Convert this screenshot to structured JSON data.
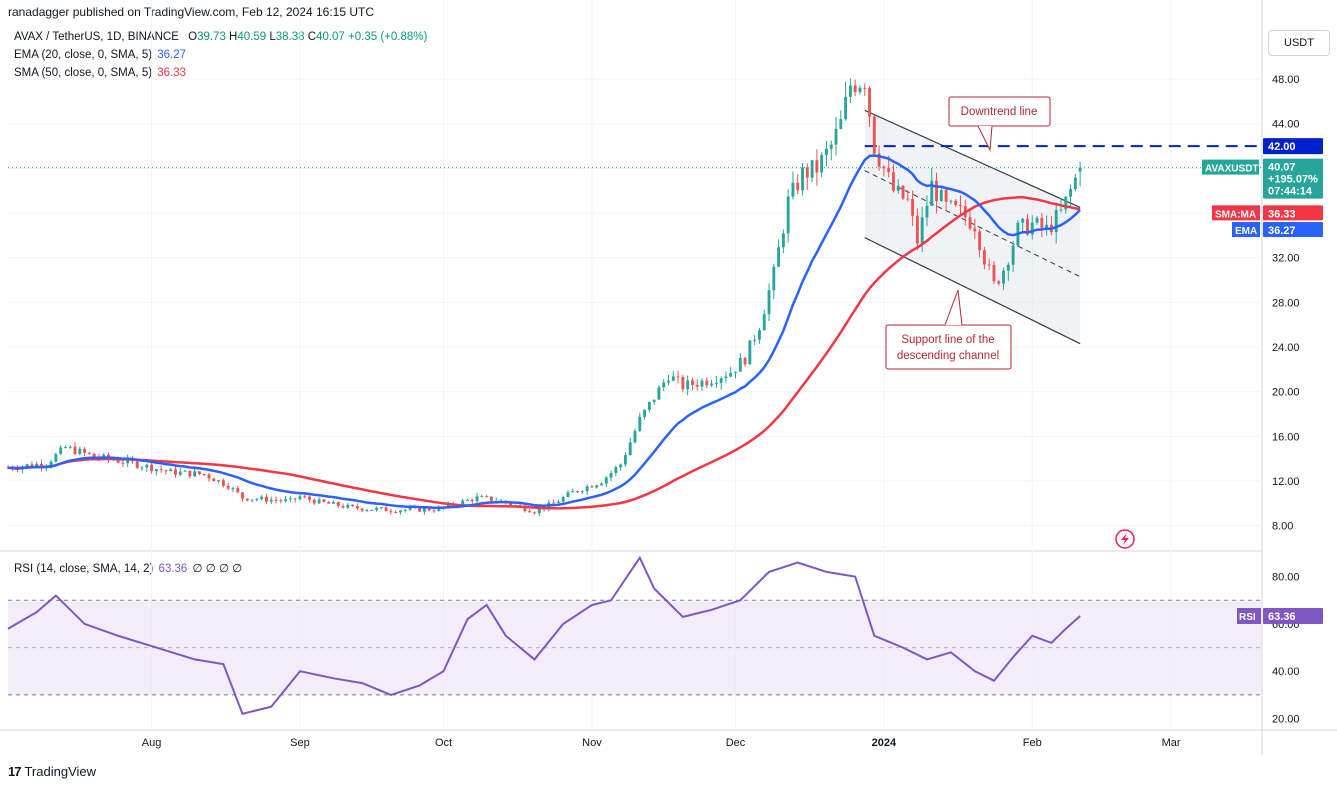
{
  "header": {
    "published": "ranadagger published on TradingView.com, Feb 12, 2024 16:15 UTC"
  },
  "legend": {
    "symbol": "AVAX / TetherUS, 1D, BINANCE",
    "o_label": "O",
    "o": "39.73",
    "h_label": "H",
    "h": "40.59",
    "l_label": "L",
    "l": "38.38",
    "c_label": "C",
    "c": "40.07",
    "change": "+0.35 (+0.88%)",
    "ema_label": "EMA (20, close, 0, SMA, 5)",
    "ema_value": "36.27",
    "sma_label": "SMA (50, close, 0, SMA, 5)",
    "sma_value": "36.33",
    "rsi_label": "RSI (14, close, SMA, 14, 2)",
    "rsi_value": "63.36",
    "rsi_extra": "∅ ∅ ∅ ∅"
  },
  "currency_button": "USDT",
  "footer": {
    "brand": "TradingView",
    "logo": "17"
  },
  "annotations": {
    "downtrend": "Downtrend line",
    "support_line1": "Support line of the",
    "support_line2": "descending channel"
  },
  "badges": {
    "symbol": "AVAXUSDT",
    "price": "40.07",
    "pct": "+195.07%",
    "countdown": "07:44:14",
    "level": "42.00",
    "sma": "SMA:MA",
    "sma_val": "36.33",
    "ema": "EMA",
    "ema_val": "36.27",
    "rsi": "RSI",
    "rsi_val": "63.36"
  },
  "colors": {
    "up": "#26a69a",
    "down": "#ef5350",
    "ema": "#2962ff",
    "sma": "#f23645",
    "rsi": "#7e57c2",
    "dashed_level": "#0022cc",
    "channel": "#363a45",
    "annotation": "#b22833"
  },
  "chart_data": [
    {
      "type": "candlestick",
      "title": "AVAX / TetherUS, 1D, BINANCE",
      "y_ticks": [
        "8.00",
        "12.00",
        "16.00",
        "20.00",
        "24.00",
        "28.00",
        "32.00",
        "36.00",
        "40.00",
        "44.00",
        "48.00"
      ],
      "y_tick_values": [
        8,
        12,
        16,
        20,
        24,
        28,
        32,
        36,
        40,
        44,
        48
      ],
      "x_ticks": [
        "Aug",
        "Sep",
        "Oct",
        "Nov",
        "Dec",
        "2024",
        "Feb",
        "Mar"
      ],
      "x_tick_dates": [
        "2023-08-01",
        "2023-09-01",
        "2023-10-01",
        "2023-11-01",
        "2023-12-01",
        "2024-01-01",
        "2024-02-01",
        "2024-03-01"
      ],
      "x_range": [
        "2023-07-02",
        "2024-03-20"
      ],
      "ylim": [
        6.0,
        51.5
      ],
      "close_anchors": [
        [
          "2023-07-02",
          13.2
        ],
        [
          "2023-07-10",
          13.6
        ],
        [
          "2023-07-14",
          15.0
        ],
        [
          "2023-07-20",
          14.2
        ],
        [
          "2023-07-28",
          13.6
        ],
        [
          "2023-08-05",
          12.8
        ],
        [
          "2023-08-12",
          12.6
        ],
        [
          "2023-08-17",
          11.6
        ],
        [
          "2023-08-20",
          10.5
        ],
        [
          "2023-08-30",
          10.2
        ],
        [
          "2023-09-01",
          10.6
        ],
        [
          "2023-09-05",
          10.1
        ],
        [
          "2023-09-12",
          9.6
        ],
        [
          "2023-09-20",
          9.4
        ],
        [
          "2023-09-30",
          9.5
        ],
        [
          "2023-10-08",
          10.5
        ],
        [
          "2023-10-12",
          10.3
        ],
        [
          "2023-10-20",
          9.3
        ],
        [
          "2023-10-24",
          10.0
        ],
        [
          "2023-10-28",
          11.0
        ],
        [
          "2023-11-03",
          12.0
        ],
        [
          "2023-11-07",
          13.5
        ],
        [
          "2023-11-11",
          17.5
        ],
        [
          "2023-11-14",
          19.5
        ],
        [
          "2023-11-17",
          21.5
        ],
        [
          "2023-11-20",
          20.5
        ],
        [
          "2023-11-25",
          21.0
        ],
        [
          "2023-11-30",
          21.8
        ],
        [
          "2023-12-03",
          23.0
        ],
        [
          "2023-12-06",
          26.0
        ],
        [
          "2023-12-09",
          30.5
        ],
        [
          "2023-12-12",
          37.0
        ],
        [
          "2023-12-15",
          39.5
        ],
        [
          "2023-12-18",
          40.0
        ],
        [
          "2023-12-21",
          42.0
        ],
        [
          "2023-12-23",
          44.0
        ],
        [
          "2023-12-25",
          47.5
        ],
        [
          "2023-12-28",
          48.0
        ],
        [
          "2023-12-30",
          42.0
        ],
        [
          "2024-01-03",
          38.0
        ],
        [
          "2024-01-06",
          37.0
        ],
        [
          "2024-01-08",
          33.5
        ],
        [
          "2024-01-11",
          38.5
        ],
        [
          "2024-01-14",
          36.5
        ],
        [
          "2024-01-17",
          36.0
        ],
        [
          "2024-01-20",
          35.0
        ],
        [
          "2024-01-22",
          32.0
        ],
        [
          "2024-01-24",
          29.5
        ],
        [
          "2024-01-26",
          31.0
        ],
        [
          "2024-01-29",
          34.5
        ],
        [
          "2024-02-01",
          35.0
        ],
        [
          "2024-02-04",
          34.5
        ],
        [
          "2024-02-07",
          36.0
        ],
        [
          "2024-02-09",
          38.0
        ],
        [
          "2024-02-11",
          40.07
        ]
      ],
      "ema20": {
        "name": "EMA (20, close, 0, SMA, 5)",
        "last": 36.27
      },
      "sma50": {
        "name": "SMA (50, close, 0, SMA, 5)",
        "last": 36.33
      },
      "horizontal_level": 42.0,
      "downtrend_line": [
        [
          "2023-12-28",
          45.2
        ],
        [
          "2024-02-11",
          36.5
        ]
      ],
      "channel_middle": [
        [
          "2023-12-28",
          39.8
        ],
        [
          "2024-02-11",
          30.3
        ]
      ],
      "support_line": [
        [
          "2023-12-28",
          33.8
        ],
        [
          "2024-02-11",
          24.3
        ]
      ],
      "annotations": [
        "Downtrend line",
        "Support line of the descending channel"
      ]
    },
    {
      "type": "line",
      "title": "RSI (14, close, SMA, 14, 2)",
      "y_ticks": [
        "20.00",
        "40.00",
        "60.00",
        "80.00"
      ],
      "y_tick_values": [
        20,
        40,
        60,
        80
      ],
      "ylim": [
        16,
        90
      ],
      "bands": [
        30,
        50,
        70
      ],
      "values": [
        [
          "2023-07-02",
          58
        ],
        [
          "2023-07-08",
          65
        ],
        [
          "2023-07-12",
          72
        ],
        [
          "2023-07-18",
          60
        ],
        [
          "2023-07-25",
          55
        ],
        [
          "2023-08-02",
          50
        ],
        [
          "2023-08-10",
          45
        ],
        [
          "2023-08-16",
          43
        ],
        [
          "2023-08-20",
          22
        ],
        [
          "2023-08-26",
          25
        ],
        [
          "2023-09-01",
          40
        ],
        [
          "2023-09-08",
          37
        ],
        [
          "2023-09-14",
          35
        ],
        [
          "2023-09-20",
          30
        ],
        [
          "2023-09-26",
          34
        ],
        [
          "2023-10-01",
          40
        ],
        [
          "2023-10-06",
          62
        ],
        [
          "2023-10-10",
          68
        ],
        [
          "2023-10-14",
          55
        ],
        [
          "2023-10-20",
          45
        ],
        [
          "2023-10-26",
          60
        ],
        [
          "2023-11-01",
          68
        ],
        [
          "2023-11-05",
          70
        ],
        [
          "2023-11-11",
          88
        ],
        [
          "2023-11-14",
          75
        ],
        [
          "2023-11-20",
          63
        ],
        [
          "2023-11-26",
          66
        ],
        [
          "2023-12-02",
          70
        ],
        [
          "2023-12-08",
          82
        ],
        [
          "2023-12-14",
          86
        ],
        [
          "2023-12-20",
          82
        ],
        [
          "2023-12-26",
          80
        ],
        [
          "2023-12-30",
          55
        ],
        [
          "2024-01-05",
          50
        ],
        [
          "2024-01-10",
          45
        ],
        [
          "2024-01-15",
          48
        ],
        [
          "2024-01-20",
          40
        ],
        [
          "2024-01-24",
          36
        ],
        [
          "2024-01-28",
          46
        ],
        [
          "2024-02-01",
          55
        ],
        [
          "2024-02-05",
          52
        ],
        [
          "2024-02-08",
          58
        ],
        [
          "2024-02-11",
          63.36
        ]
      ]
    }
  ]
}
